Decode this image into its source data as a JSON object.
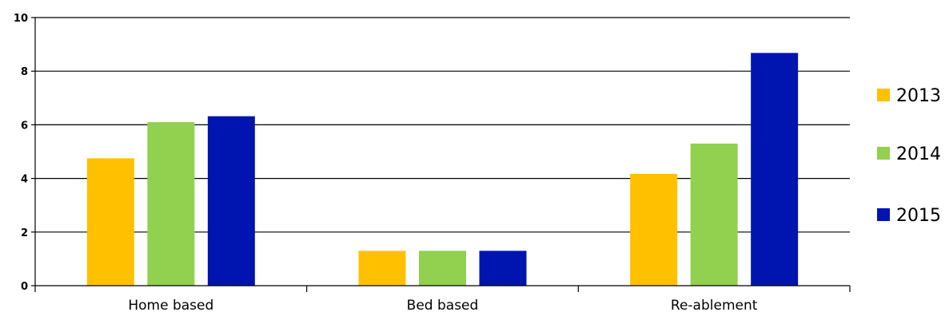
{
  "chart_data": {
    "type": "bar",
    "title": "",
    "xlabel": "",
    "ylabel": "",
    "categories": [
      "Home based",
      "Bed based",
      "Re-ablement"
    ],
    "series": [
      {
        "name": "2013",
        "color": "#FFC000",
        "values": [
          4.75,
          1.3,
          4.17
        ]
      },
      {
        "name": "2014",
        "color": "#92D050",
        "values": [
          6.1,
          1.3,
          5.3
        ]
      },
      {
        "name": "2015",
        "color": "#0015B0",
        "values": [
          6.32,
          1.3,
          8.68
        ]
      }
    ],
    "ylim": [
      0,
      10
    ],
    "yticks": [
      0,
      2,
      4,
      6,
      8,
      10
    ],
    "grid": true,
    "legend_position": "right"
  }
}
